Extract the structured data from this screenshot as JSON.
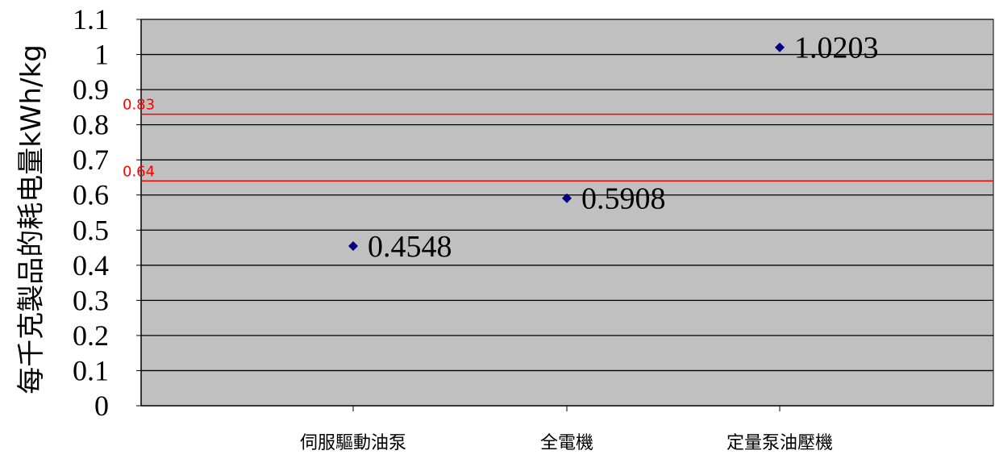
{
  "chart_data": {
    "type": "scatter",
    "ylabel": "每千克製品的耗电量kWh/kg",
    "xlabel": "",
    "ylim": [
      0,
      1.1
    ],
    "yticks": [
      "0",
      "0.1",
      "0.2",
      "0.3",
      "0.4",
      "0.5",
      "0.6",
      "0.7",
      "0.8",
      "0.9",
      "1",
      "1.1"
    ],
    "categories": [
      "伺服驅動油泵",
      "全電機",
      "定量泵油壓機"
    ],
    "values": [
      0.4548,
      0.5908,
      1.0203
    ],
    "data_labels": [
      "0.4548",
      "0.5908",
      "1.0203"
    ],
    "grid": true,
    "plot_background": "#c0c0c0",
    "marker_color": "#000080",
    "reference_lines": [
      {
        "value": 0.83,
        "label": "0.83",
        "color": "#ff0000"
      },
      {
        "value": 0.64,
        "label": "0.64",
        "color": "#ff0000"
      }
    ]
  }
}
